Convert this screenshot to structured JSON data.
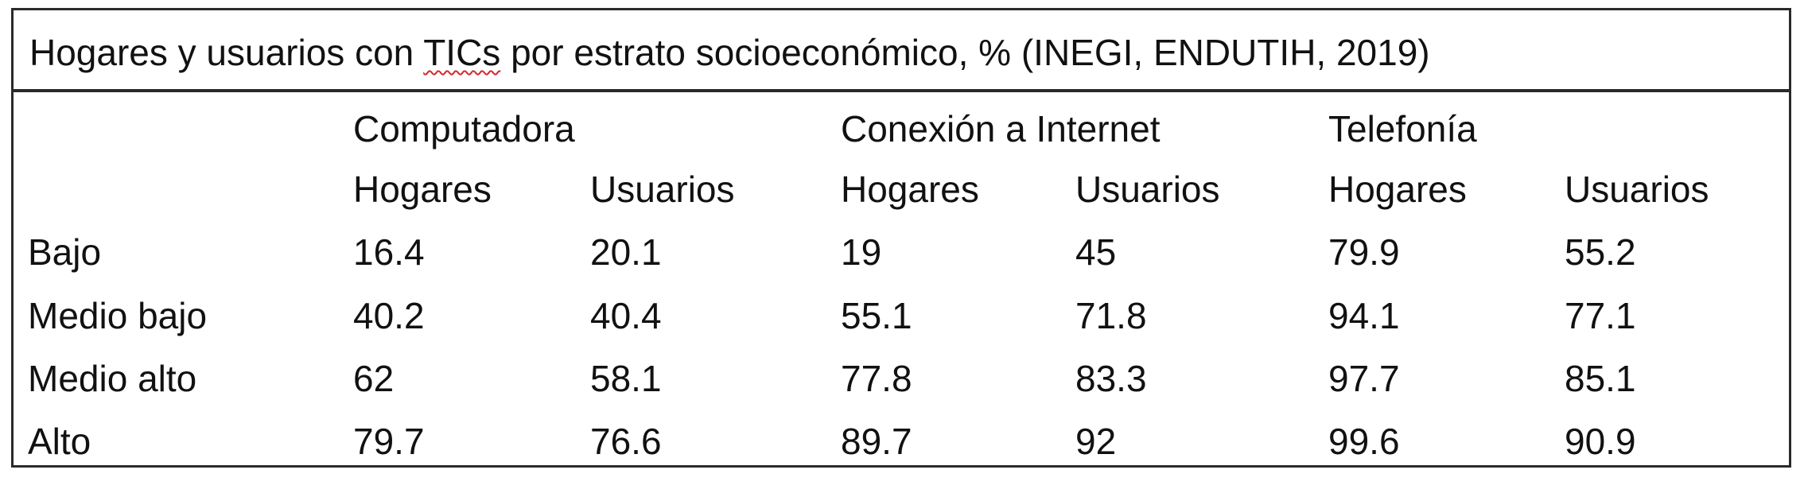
{
  "table": {
    "title_before": "Hogares y usuarios con ",
    "title_flagged": "TICs",
    "title_after": " por estrato socioeconómico, % (INEGI, ENDUTIH, 2019)",
    "groups": [
      "Computadora",
      "Conexión a Internet",
      "Telefonía"
    ],
    "subheaders": [
      "Hogares",
      "Usuarios",
      "Hogares",
      "Usuarios",
      "Hogares",
      "Usuarios"
    ],
    "rows": [
      {
        "label": "Bajo",
        "values": [
          "16.4",
          "20.1",
          "19",
          "45",
          "79.9",
          "55.2"
        ]
      },
      {
        "label": "Medio bajo",
        "values": [
          "40.2",
          "40.4",
          "55.1",
          "71.8",
          "94.1",
          "77.1"
        ]
      },
      {
        "label": "Medio alto",
        "values": [
          "62",
          "58.1",
          "77.8",
          "83.3",
          "97.7",
          "85.1"
        ]
      },
      {
        "label": "Alto",
        "values": [
          "79.7",
          "76.6",
          "89.7",
          "92",
          "99.6",
          "90.9"
        ]
      }
    ]
  }
}
